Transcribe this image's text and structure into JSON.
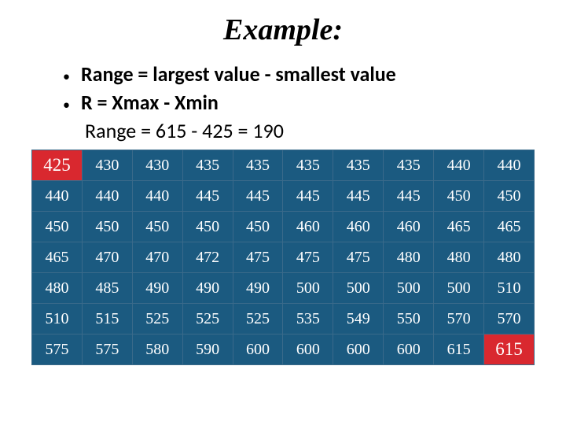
{
  "title": "Example:",
  "bullets": [
    "Range = largest value - smallest value",
    "R = Xmax - Xmin"
  ],
  "indent_line": "Range = 615 - 425 = 190",
  "table": {
    "rows": [
      [
        "425",
        "430",
        "430",
        "435",
        "435",
        "435",
        "435",
        "435",
        "440",
        "440"
      ],
      [
        "440",
        "440",
        "440",
        "445",
        "445",
        "445",
        "445",
        "445",
        "450",
        "450"
      ],
      [
        "450",
        "450",
        "450",
        "450",
        "450",
        "460",
        "460",
        "460",
        "465",
        "465"
      ],
      [
        "465",
        "470",
        "470",
        "472",
        "475",
        "475",
        "475",
        "480",
        "480",
        "480"
      ],
      [
        "480",
        "485",
        "490",
        "490",
        "490",
        "500",
        "500",
        "500",
        "500",
        "510"
      ],
      [
        "510",
        "515",
        "525",
        "525",
        "525",
        "535",
        "549",
        "550",
        "570",
        "570"
      ],
      [
        "575",
        "575",
        "580",
        "590",
        "600",
        "600",
        "600",
        "600",
        "615",
        "615"
      ]
    ],
    "highlight_first": {
      "row": 0,
      "col": 0
    },
    "highlight_last": {
      "row": 6,
      "col": 9
    },
    "cell_bg": "#1b5a80",
    "cell_fg": "#ffffff",
    "hl_bg": "#d9282f",
    "border_color": "#3a6a8a",
    "cell_font_size": 20,
    "hl_font_size": 23,
    "cols": 10,
    "row_count": 7
  }
}
